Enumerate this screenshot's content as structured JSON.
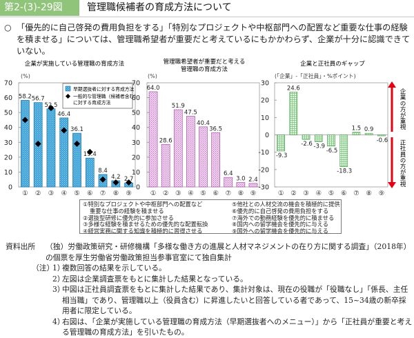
{
  "header": {
    "figure_number": "第2-(3)-29図",
    "title": "管理職候補者の育成方法について"
  },
  "summary": {
    "bullet": "○",
    "text": "「優先的に自己啓発の費用負担をする」「特別なプロジェクトや中枢部門への配置など重要な仕事の経験を積ませる」については、管理職希望者が重要だと考えているにもかかわらず、企業が十分に認識できていない。"
  },
  "chart_data": [
    {
      "type": "bar",
      "title": "企業が実施している管理職の育成方法",
      "ylabel": "(%)",
      "xlabel": "",
      "ylim": [
        0,
        70
      ],
      "yticks": [
        0,
        10,
        20,
        30,
        40,
        50,
        60,
        70
      ],
      "categories": [
        "①",
        "②",
        "③",
        "④",
        "⑤",
        "⑥",
        "⑦",
        "⑧",
        "⑨"
      ],
      "series": [
        {
          "name": "早期選抜者に対する育成方法",
          "kind": "bar",
          "color": "#3ba3d9",
          "values": [
            58.2,
            56.7,
            52.5,
            46.4,
            36.1,
            19.4,
            8.4,
            4.2,
            2.7
          ],
          "labeled": true
        },
        {
          "name": "一般的な管理職（候補者含む）に対する育成方法",
          "kind": "marker",
          "color": "#000000",
          "values": [
            45,
            29,
            53,
            38,
            29,
            23.5,
            5,
            3,
            3
          ],
          "labeled": false
        }
      ],
      "legend": {
        "position": "top-right",
        "entries": [
          "早期選抜者に対する育成方法",
          "一般的な管理職（候補者含む）",
          "に対する育成方法"
        ]
      }
    },
    {
      "type": "bar",
      "title": "管理職希望者が重要だと考える",
      "title_line2": "管理職の育成方法",
      "ylabel": "(%)",
      "xlabel": "",
      "ylim": [
        0,
        70
      ],
      "yticks": [
        0,
        10,
        20,
        30,
        40,
        50,
        60,
        70
      ],
      "categories": [
        "①",
        "②",
        "③",
        "④",
        "⑤",
        "⑥",
        "⑦",
        "⑧",
        "⑨"
      ],
      "series": [
        {
          "name": "管理職希望者",
          "kind": "bar",
          "color": "#d89ad8",
          "values": [
            64.0,
            28.6,
            51.9,
            47.5,
            40.4,
            36.5,
            6.4,
            3.0,
            2.4
          ],
          "labeled": true
        }
      ]
    },
    {
      "type": "bar",
      "title": "企業と正社員のギャップ",
      "ylabel": "(「企業」-「正社員」・%ポイント)",
      "xlabel": "",
      "ylim": [
        -30,
        30
      ],
      "yticks": [
        -30,
        -20,
        -10,
        0,
        10,
        20,
        30
      ],
      "categories": [
        "①",
        "②",
        "③",
        "④",
        "⑤",
        "⑥",
        "⑦",
        "⑧",
        "⑨"
      ],
      "series": [
        {
          "name": "ギャップ",
          "kind": "bar",
          "color": "#9ad39a",
          "values": [
            -9.3,
            24.6,
            -2.6,
            -3.9,
            -6.5,
            -18.3,
            1.5,
            0.9,
            -0.6
          ],
          "labeled": true
        }
      ],
      "annotations": {
        "up_arrow_label": "企業の方が重視",
        "down_arrow_label": "正社員の方が重視",
        "arrow_color": "#e60012"
      }
    }
  ],
  "items": {
    "left": [
      "①特別なプロジェクトや中枢部門への配置など",
      "重要な仕事の経験を積ませる",
      "②選抜型研修に優先的に参加させる",
      "③多様な経験を積ませるための優先的な配置転換",
      "④経営実務に関する知識を積極的に習得させる"
    ],
    "right": [
      "⑤他社との人材交流の機会を積極的に提供",
      "⑥優先的に自己啓発の費用負担をする",
      "⑦海外での勤務経験を優先的に積ませる",
      "⑧国内への留学機会を優先的に与える",
      "⑨国外への留学機会を優先的に与える"
    ]
  },
  "notes": {
    "source_label": "資料出所",
    "source_text": "（独）労働政策研究・研修機構「多様な働き方の進展と人材マネジメントの在り方に関する調査」（2018年）の個票を厚生労働省労働政策担当参事官室にて独自集計",
    "note_label": "（注）",
    "items": [
      {
        "num": "1）",
        "text": "複数回答の結果を示している。"
      },
      {
        "num": "2）",
        "text": "左図は企業調査票をもとに集計した結果となっている。"
      },
      {
        "num": "3）",
        "text": "中図は正社員調査票をもとに集計した結果であり、集計対象は、現在の役職が「役職なし」「係長、主任相当職」であり、管理職以上（役員含む）に昇進したいと回答している者であって、15~34歳の新卒採用者に限定している。"
      },
      {
        "num": "4）",
        "text": "右図は、「企業が実施している管理職の育成方法（早期選抜者へのメニュー）」から「正社員が重要と考える管理職の育成方法」を引いたもの。"
      }
    ]
  }
}
